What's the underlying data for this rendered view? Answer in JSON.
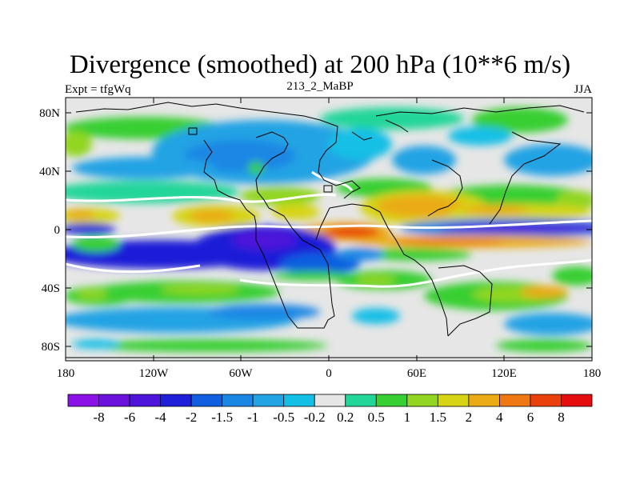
{
  "title": "Divergence (smoothed) at 200 hPa (10**6 m/s)",
  "left_label": "Expt = tfgWq",
  "center_label": "213_2_MaBP",
  "right_label": "JJA",
  "lat_ticks": [
    "80N",
    "40N",
    "0",
    "40S",
    "80S"
  ],
  "lon_ticks": [
    "180",
    "120W",
    "60W",
    "0",
    "60E",
    "120E",
    "180"
  ],
  "colorbar": {
    "labels": [
      "-8",
      "-6",
      "-4",
      "-2",
      "-1.5",
      "-1",
      "-0.5",
      "-0.2",
      "0.2",
      "0.5",
      "1",
      "1.5",
      "2",
      "4",
      "6",
      "8"
    ],
    "colors": [
      "#8a12e6",
      "#6c11dc",
      "#4d14da",
      "#1f1ed8",
      "#0f5fe0",
      "#1a87e4",
      "#21a3e4",
      "#14bfe6",
      "#e6e6e6",
      "#22d69a",
      "#38cf33",
      "#92d621",
      "#d6d415",
      "#eaab16",
      "#ee7811",
      "#e9400c",
      "#e50d0d"
    ]
  },
  "chart_data": {
    "type": "heatmap",
    "title": "Divergence (smoothed) at 200 hPa (10**6 m/s)",
    "left_label": "Expt = tfgWq",
    "center_label": "213_2_MaBP",
    "right_label": "JJA",
    "xlim": [
      -180,
      180
    ],
    "ylim": [
      -90,
      90
    ],
    "x_ticks": [
      "180",
      "120W",
      "60W",
      "0",
      "60E",
      "120E",
      "180"
    ],
    "y_ticks": [
      "80N",
      "40N",
      "0",
      "40S",
      "80S"
    ],
    "levels": [
      -8,
      -6,
      -4,
      -2,
      -1.5,
      -1,
      -0.5,
      -0.2,
      0.2,
      0.5,
      1,
      1.5,
      2,
      4,
      6,
      8
    ],
    "features": [
      {
        "lon": 70,
        "lat": 15,
        "value": 6
      },
      {
        "lon": 110,
        "lat": 15,
        "value": 3.5
      },
      {
        "lon": 10,
        "lat": 0,
        "value": 5
      },
      {
        "lon": -95,
        "lat": 10,
        "value": 3
      },
      {
        "lon": -170,
        "lat": 8,
        "value": 3
      },
      {
        "lon": 150,
        "lat": 0,
        "value": -6
      },
      {
        "lon": -60,
        "lat": -15,
        "value": -4
      },
      {
        "lon": -120,
        "lat": -20,
        "value": -3
      },
      {
        "lon": 30,
        "lat": 50,
        "value": 1
      },
      {
        "lon": 150,
        "lat": -45,
        "value": 2
      },
      {
        "lon": -150,
        "lat": -45,
        "value": 1
      },
      {
        "lon": -75,
        "lat": 40,
        "value": -1
      }
    ]
  }
}
